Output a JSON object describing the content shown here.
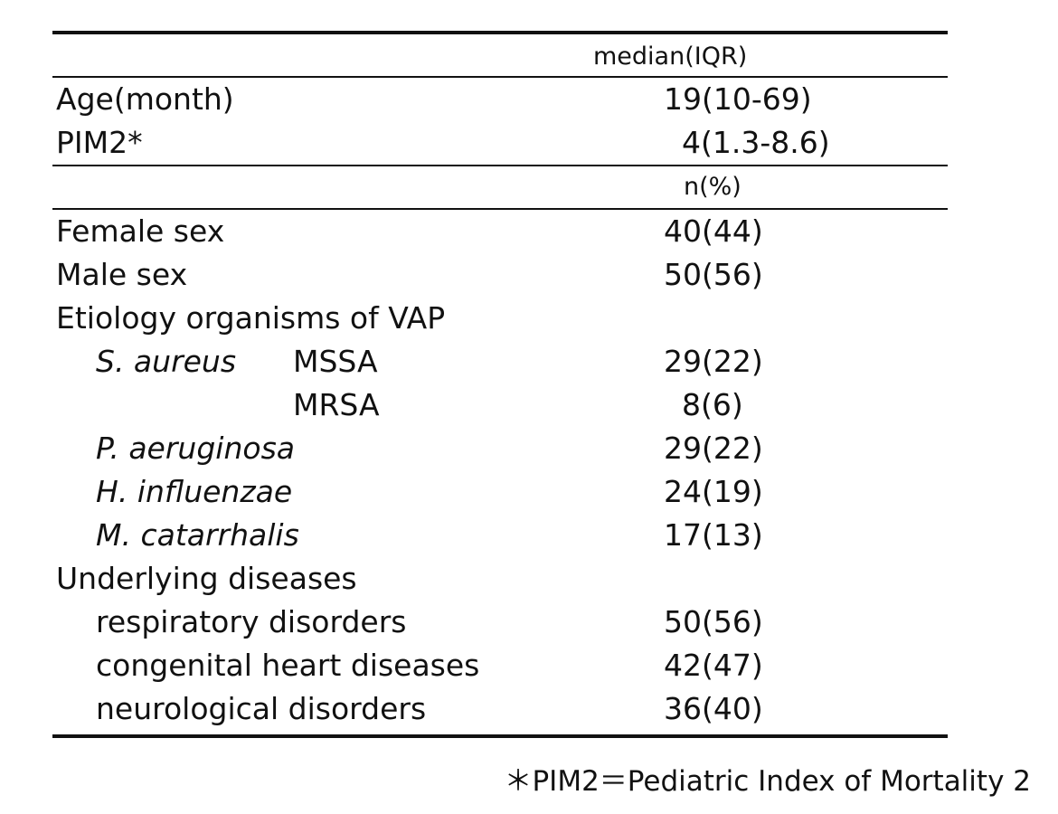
{
  "table": {
    "header1": "median(IQR)",
    "header2": "n(%)",
    "continuous": [
      {
        "label": "Age(month)",
        "value": "19(10-69)"
      },
      {
        "label": "PIM2*",
        "value": "4(1.3-8.6)"
      }
    ],
    "categorical": {
      "female": {
        "label": "Female sex",
        "value": "40(44)"
      },
      "male": {
        "label": "Male sex",
        "value": "50(56)"
      },
      "etiology_heading": "Etiology organisms of VAP",
      "s_aureus_label": "S. aureus",
      "mssa": {
        "label": "MSSA",
        "value": "29(22)"
      },
      "mrsa": {
        "label": "MRSA",
        "value": "8(6)"
      },
      "p_aeruginosa": {
        "label": "P. aeruginosa",
        "value": "29(22)"
      },
      "h_influenzae": {
        "label": "H. influenzae",
        "value": "24(19)"
      },
      "m_catarrhalis": {
        "label": "M. catarrhalis",
        "value": "17(13)"
      },
      "underlying_heading": "Underlying diseases",
      "respiratory": {
        "label": "respiratory disorders",
        "value": "50(56)"
      },
      "congenital": {
        "label": "congenital heart diseases",
        "value": "42(47)"
      },
      "neurological": {
        "label": "neurological disorders",
        "value": "36(40)"
      }
    }
  },
  "footnote": "＊PIM2＝Pediatric Index of Mortality 2"
}
